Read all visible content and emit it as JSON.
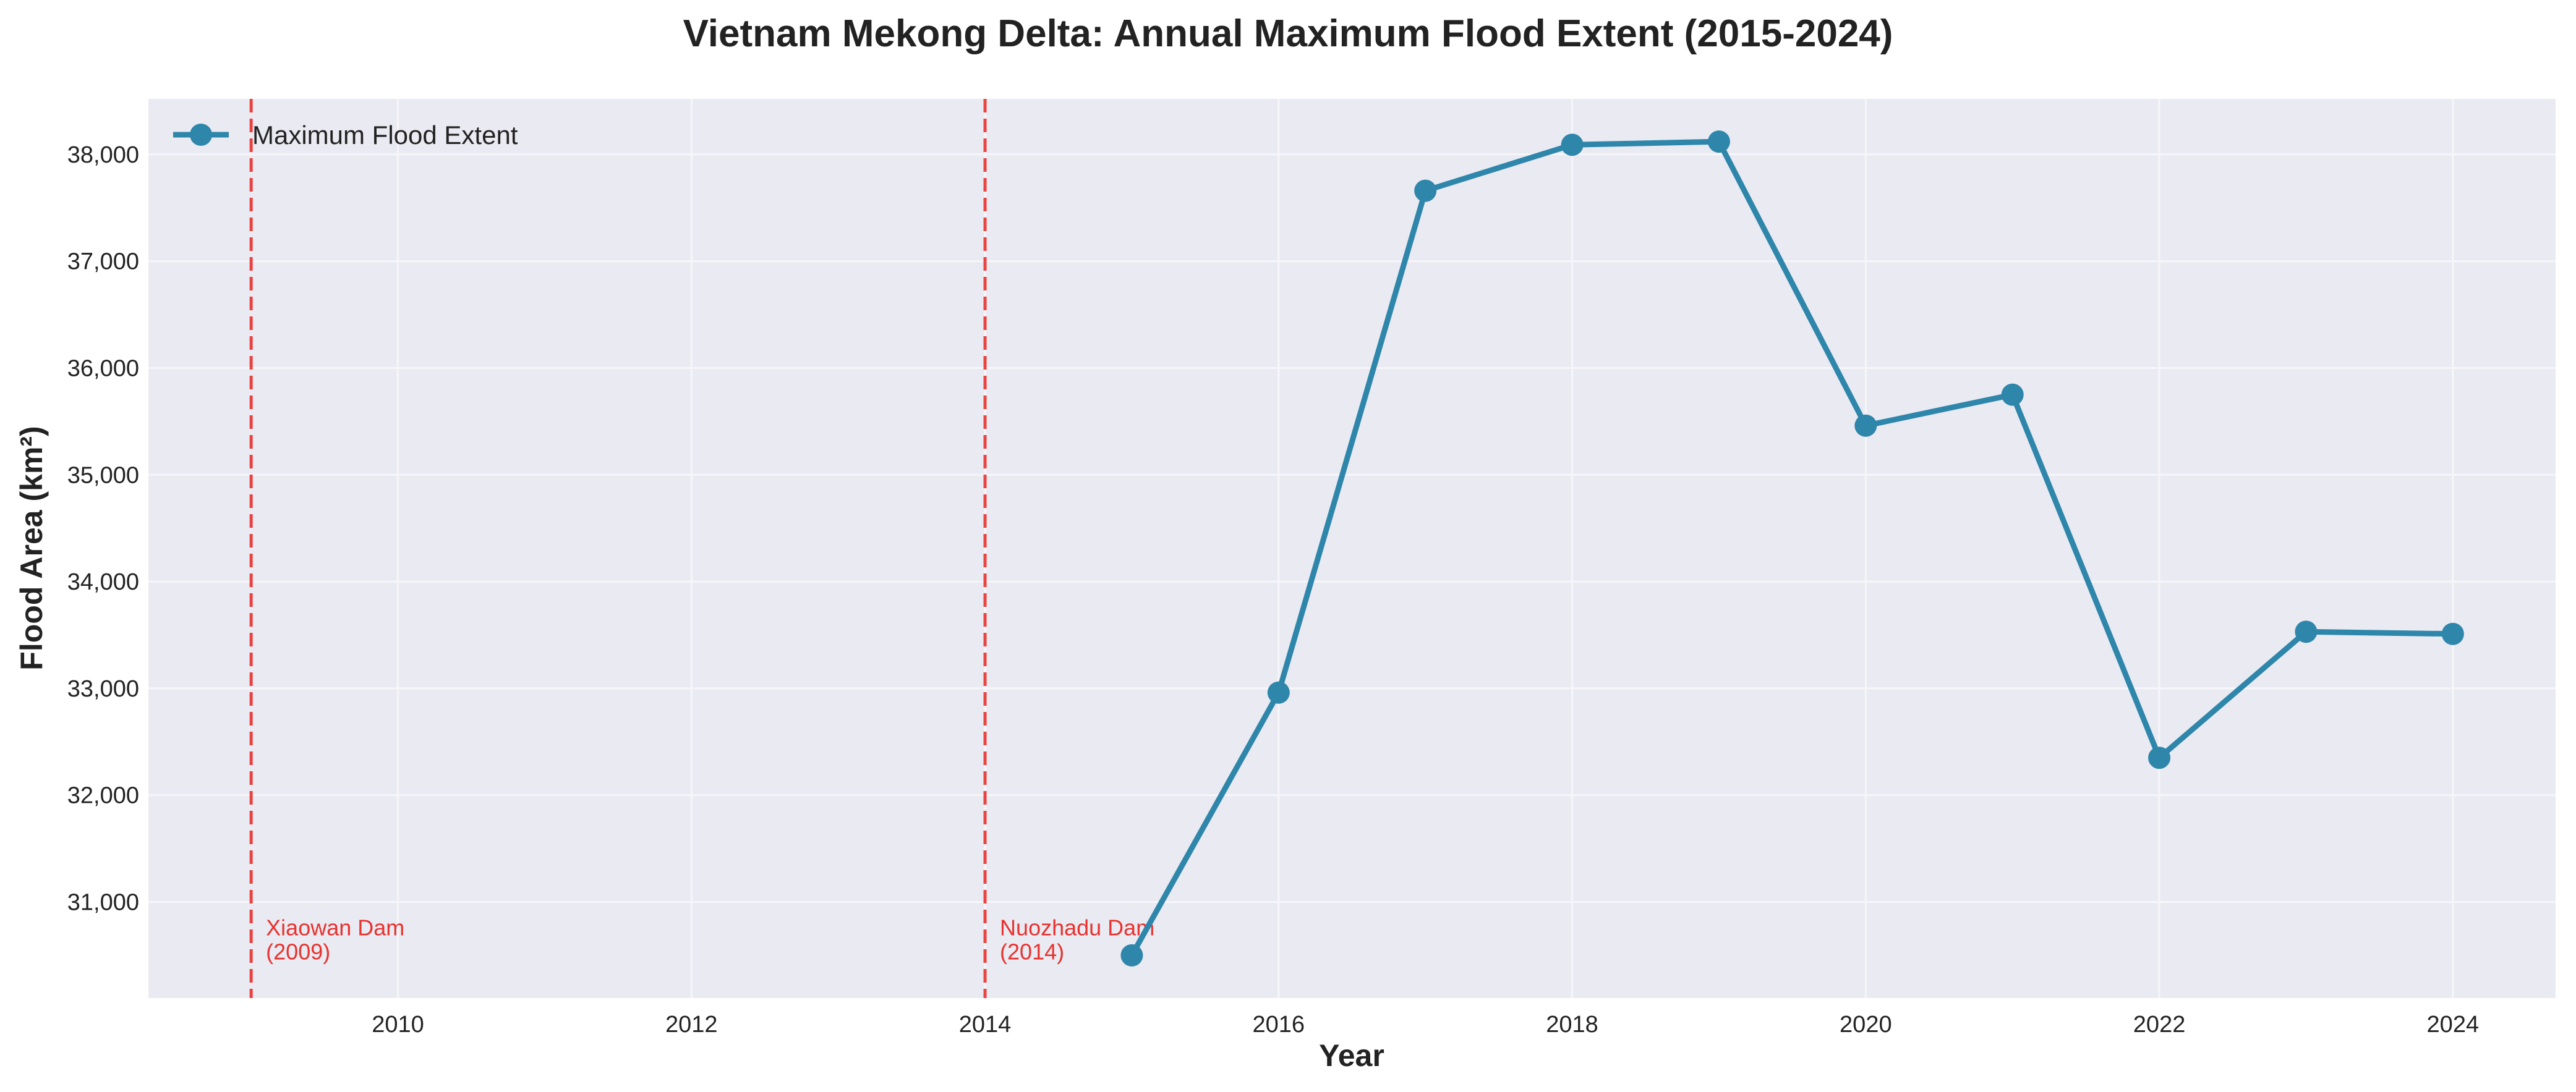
{
  "chart_data": {
    "type": "line",
    "title": "Vietnam Mekong Delta: Annual Maximum Flood Extent (2015-2024)",
    "xlabel": "Year",
    "ylabel": "Flood Area (km²)",
    "xlim": [
      2008.3,
      2024.7
    ],
    "ylim": [
      30100,
      38520
    ],
    "x_ticks": [
      2010,
      2012,
      2014,
      2016,
      2018,
      2020,
      2022,
      2024
    ],
    "x_tick_labels": [
      "2010",
      "2012",
      "2014",
      "2016",
      "2018",
      "2020",
      "2022",
      "2024"
    ],
    "y_ticks": [
      31000,
      32000,
      33000,
      34000,
      35000,
      36000,
      37000,
      38000
    ],
    "y_tick_labels": [
      "31,000",
      "32,000",
      "33,000",
      "34,000",
      "35,000",
      "36,000",
      "37,000",
      "38,000"
    ],
    "grid": true,
    "legend_position": "top-left",
    "series": [
      {
        "name": "Maximum Flood Extent",
        "color": "#2e86ab",
        "x": [
          2015,
          2016,
          2017,
          2018,
          2019,
          2020,
          2021,
          2022,
          2023,
          2024
        ],
        "y": [
          30500,
          32960,
          37660,
          38090,
          38120,
          35460,
          35750,
          32350,
          33530,
          33510
        ]
      }
    ],
    "reference_lines": [
      {
        "x": 2009,
        "color": "#e8322e",
        "label_line1": "Xiaowan Dam",
        "label_line2": "(2009)"
      },
      {
        "x": 2014,
        "color": "#e8322e",
        "label_line1": "Nuozhadu Dam",
        "label_line2": "(2014)"
      }
    ],
    "plot_background": "#eaeaf2",
    "grid_color": "#f6f6fa"
  }
}
